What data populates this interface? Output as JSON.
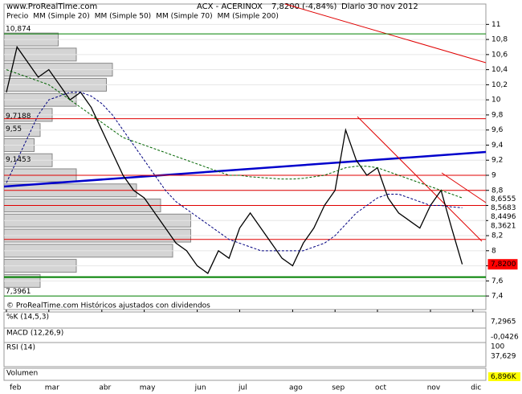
{
  "chart_data": {
    "type": "line",
    "site": "www.ProRealTime.com",
    "title": "ACX - ACERINOX",
    "last": "7,8200 (-4,84%)",
    "period": "Diario  30 nov 2012",
    "legend_extra": [
      "MM (Simple 20)",
      "MM (Simple 50)"
    ],
    "annotation": "© ProRealTime.com  Históricos ajustados con dividendos",
    "categories": [
      "feb",
      null,
      null,
      null,
      "mar",
      null,
      null,
      null,
      null,
      "abr",
      null,
      null,
      null,
      "may",
      null,
      null,
      null,
      null,
      "jun",
      null,
      null,
      null,
      "jul",
      null,
      null,
      null,
      null,
      "ago",
      null,
      null,
      null,
      "sep",
      null,
      null,
      null,
      "oct",
      null,
      null,
      null,
      null,
      "nov",
      null,
      null,
      null,
      "dic"
    ],
    "series": [
      {
        "name": "Precio",
        "color": "#000000",
        "values": [
          10.1,
          10.7,
          10.5,
          10.3,
          10.4,
          10.2,
          10.0,
          10.1,
          9.9,
          9.6,
          9.3,
          9.0,
          8.8,
          8.7,
          8.5,
          8.3,
          8.1,
          8.0,
          7.8,
          7.7,
          8.0,
          7.9,
          8.3,
          8.5,
          8.3,
          8.1,
          7.9,
          7.8,
          8.1,
          8.3,
          8.6,
          8.8,
          9.6,
          9.2,
          9.0,
          9.1,
          8.7,
          8.5,
          8.4,
          8.3,
          8.6,
          8.8,
          8.3,
          7.82,
          null
        ]
      },
      {
        "name": "MM (Simple 70)",
        "color": "#000080",
        "values": [
          8.9,
          9.2,
          9.5,
          9.8,
          10.0,
          10.05,
          10.1,
          10.1,
          10.05,
          9.95,
          9.8,
          9.6,
          9.4,
          9.2,
          9.0,
          8.8,
          8.65,
          8.55,
          8.45,
          8.35,
          8.25,
          8.15,
          8.1,
          8.05,
          8.0,
          8.0,
          8.0,
          8.0,
          8.0,
          8.05,
          8.1,
          8.2,
          8.35,
          8.5,
          8.6,
          8.7,
          8.75,
          8.75,
          8.7,
          8.65,
          8.6,
          8.6,
          8.58,
          8.57,
          null
        ]
      },
      {
        "name": "MM (Simple 200)",
        "color": "#006400",
        "values": [
          10.4,
          10.35,
          10.3,
          10.25,
          10.2,
          10.1,
          10.0,
          9.9,
          9.8,
          9.7,
          9.6,
          9.5,
          9.45,
          9.4,
          9.35,
          9.3,
          9.25,
          9.2,
          9.15,
          9.1,
          9.05,
          9.0,
          9.0,
          8.98,
          8.97,
          8.96,
          8.95,
          8.95,
          8.96,
          8.98,
          9.0,
          9.05,
          9.1,
          9.12,
          9.12,
          9.1,
          9.05,
          9.0,
          8.95,
          8.9,
          8.85,
          8.8,
          8.75,
          8.7,
          null
        ]
      }
    ],
    "ylim": [
      7.22,
      11.27
    ],
    "yticks": [
      {
        "value": 7.4,
        "label": "7,4"
      },
      {
        "value": 7.6,
        "label": "7,6"
      },
      {
        "value": 7.8,
        "label": "7,8"
      },
      {
        "value": 8.0,
        "label": "8"
      },
      {
        "value": 8.2,
        "label": "8,2"
      },
      {
        "value": 8.4,
        "label": "8,4"
      },
      {
        "value": 8.6,
        "label": "8,6"
      },
      {
        "value": 8.8,
        "label": "8,8"
      },
      {
        "value": 9.0,
        "label": "9"
      },
      {
        "value": 9.2,
        "label": "9,2"
      },
      {
        "value": 9.4,
        "label": "9,4"
      },
      {
        "value": 9.6,
        "label": "9,6"
      },
      {
        "value": 9.8,
        "label": "9,8"
      },
      {
        "value": 10.0,
        "label": "10"
      },
      {
        "value": 10.2,
        "label": "10,2"
      },
      {
        "value": 10.4,
        "label": "10,4"
      },
      {
        "value": 10.6,
        "label": "10,6"
      },
      {
        "value": 10.8,
        "label": "10,8"
      },
      {
        "value": 11.0,
        "label": "11"
      }
    ],
    "right_labels": [
      {
        "value": 8.6555,
        "label": "8,6555"
      },
      {
        "value": 8.5683,
        "label": "8,5683"
      },
      {
        "value": 8.4496,
        "label": "8,4496"
      },
      {
        "value": 8.3621,
        "label": "8,3621"
      },
      {
        "value": 7.82,
        "label": "7,8200"
      }
    ],
    "left_labels": [
      {
        "value": 10.874,
        "label": "10,874"
      },
      {
        "value": 9.7188,
        "label": "9,7188"
      },
      {
        "value": 9.55,
        "label": "9,55"
      },
      {
        "value": 9.1453,
        "label": "9,1453"
      },
      {
        "value": 7.3961,
        "label": "7,3961"
      }
    ],
    "hlines": [
      {
        "value": 10.874,
        "color": "#008000"
      },
      {
        "value": 7.65,
        "color": "#008000"
      },
      {
        "value": 7.4,
        "color": "#008000"
      },
      {
        "value": 9.75,
        "color": "#e00000"
      },
      {
        "value": 9.0,
        "color": "#e00000"
      },
      {
        "value": 8.8,
        "color": "#e00000"
      },
      {
        "value": 8.6,
        "color": "#e00000"
      },
      {
        "value": 8.15,
        "color": "#e00000"
      }
    ],
    "volume_profile": {
      "prices": [
        7.6,
        7.8,
        8.0,
        8.2,
        8.4,
        8.6,
        8.8,
        9.0,
        9.2,
        9.4,
        9.6,
        9.8,
        10.0,
        10.2,
        10.4,
        10.6,
        10.8
      ],
      "volumes": [
        30,
        60,
        140,
        155,
        155,
        130,
        110,
        60,
        40,
        25,
        30,
        40,
        60,
        85,
        90,
        60,
        45
      ],
      "xlim": [
        0,
        400
      ]
    },
    "panels": [
      {
        "name": "%K (14,5,3)",
        "value": "7,2965"
      },
      {
        "name": "MACD (12,26,9)",
        "value": "-0,0426"
      },
      {
        "name": "RSI (14)",
        "value": "37,629",
        "top": "100"
      },
      {
        "name": "Volumen",
        "value": "6,896K"
      }
    ]
  }
}
